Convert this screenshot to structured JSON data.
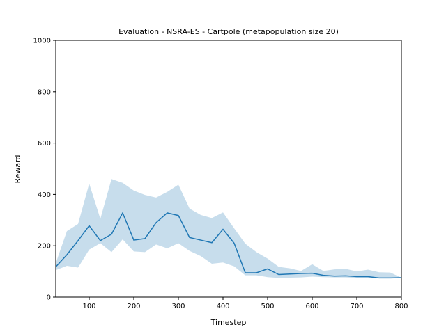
{
  "chart_data": {
    "type": "line",
    "title": "Evaluation - NSRA-ES - Cartpole (metapopulation size 20)",
    "xlabel": "Timestep",
    "ylabel": "Reward",
    "xlim": [
      25,
      800
    ],
    "ylim": [
      0,
      1000
    ],
    "xticks": [
      100,
      200,
      300,
      400,
      500,
      600,
      700,
      800
    ],
    "yticks": [
      0,
      200,
      400,
      600,
      800,
      1000
    ],
    "grid": false,
    "colors": {
      "line": "#1f77b4",
      "band": "#1f77b4"
    },
    "series": [
      {
        "x": [
          25,
          50,
          75,
          100,
          125,
          150,
          175,
          200,
          225,
          250,
          275,
          300,
          325,
          350,
          375,
          400,
          425,
          450,
          475,
          500,
          525,
          550,
          575,
          600,
          625,
          650,
          675,
          700,
          725,
          750,
          775,
          800
        ],
        "mean": [
          118,
          165,
          220,
          278,
          220,
          245,
          328,
          222,
          228,
          290,
          328,
          318,
          232,
          222,
          212,
          264,
          210,
          95,
          95,
          110,
          88,
          90,
          92,
          93,
          85,
          82,
          83,
          80,
          80,
          75,
          75,
          76
        ],
        "upper": [
          132,
          257,
          285,
          442,
          305,
          460,
          445,
          415,
          398,
          388,
          410,
          438,
          345,
          320,
          308,
          330,
          268,
          208,
          175,
          150,
          118,
          112,
          102,
          128,
          102,
          108,
          110,
          100,
          107,
          97,
          96,
          76
        ],
        "lower": [
          105,
          122,
          115,
          185,
          210,
          175,
          225,
          178,
          175,
          205,
          190,
          210,
          180,
          160,
          130,
          135,
          120,
          85,
          85,
          78,
          75,
          76,
          77,
          80,
          78,
          77,
          77,
          75,
          75,
          73,
          73,
          73
        ]
      }
    ]
  }
}
